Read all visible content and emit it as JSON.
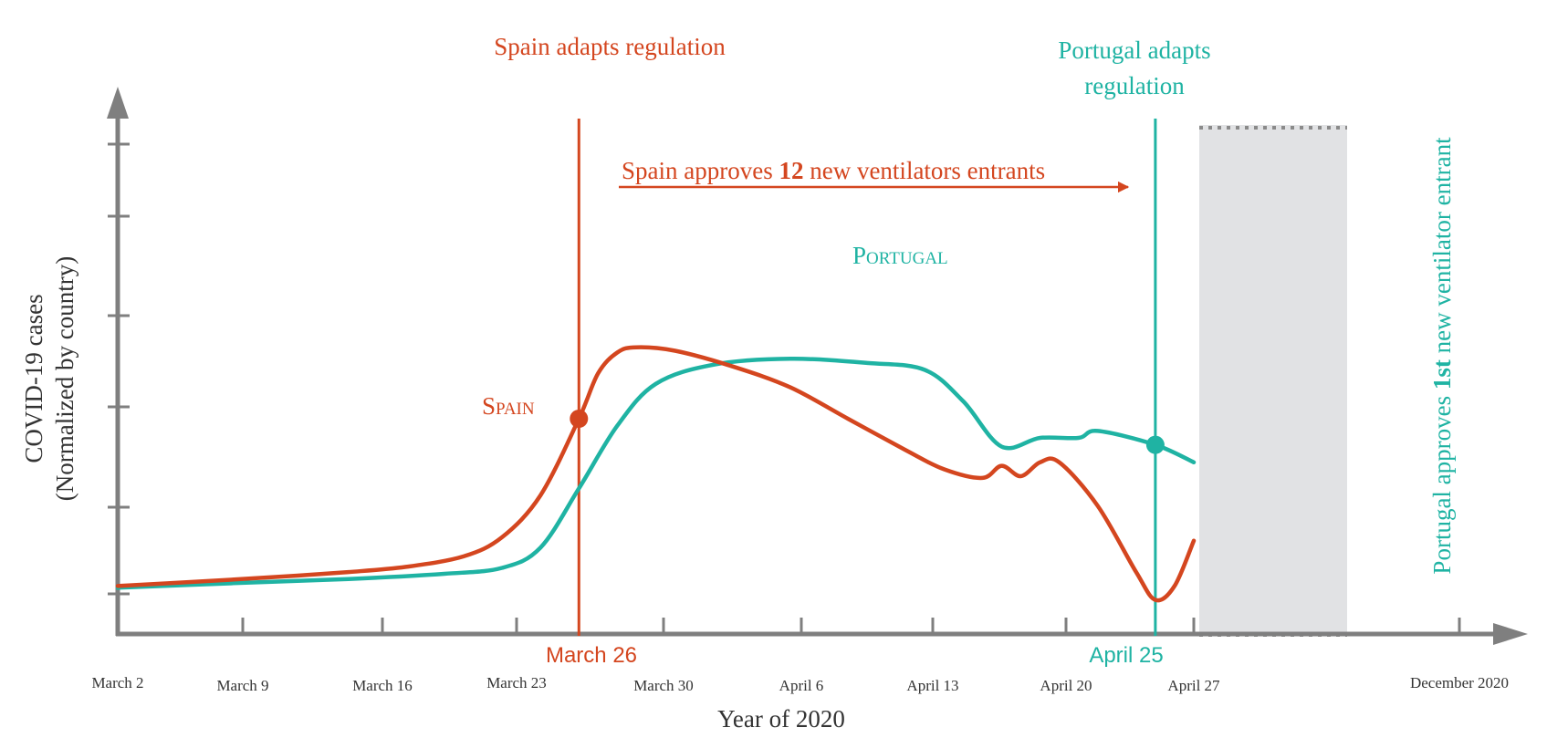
{
  "chart_data": {
    "type": "line",
    "xlabel": "Year of 2020",
    "ylabel_line1": "COVID-19 cases",
    "ylabel_line2": "(Normalized by country)",
    "x_tick_labels": [
      "March 2",
      "March 9",
      "March 16",
      "March 23",
      "March 30",
      "April 6",
      "April 13",
      "April 20",
      "April 27",
      "December 2020"
    ],
    "x_range": [
      "2020-03-02",
      "2020-04-27"
    ],
    "y_range": [
      0,
      1
    ],
    "grid": false,
    "colors": {
      "spain": "#d4461f",
      "portugal": "#1fb3a3",
      "axis": "#7f7f7f",
      "gap_region": "#e1e2e4"
    },
    "series": [
      {
        "name": "Spain",
        "color": "#d4461f",
        "points": [
          [
            "2020-03-02",
            0.02
          ],
          [
            "2020-03-06",
            0.032
          ],
          [
            "2020-03-10",
            0.045
          ],
          [
            "2020-03-14",
            0.06
          ],
          [
            "2020-03-17",
            0.075
          ],
          [
            "2020-03-20",
            0.105
          ],
          [
            "2020-03-22",
            0.16
          ],
          [
            "2020-03-24",
            0.28
          ],
          [
            "2020-03-26",
            0.5
          ],
          [
            "2020-03-27",
            0.63
          ],
          [
            "2020-03-28",
            0.69
          ],
          [
            "2020-03-29",
            0.705
          ],
          [
            "2020-03-31",
            0.695
          ],
          [
            "2020-04-03",
            0.65
          ],
          [
            "2020-04-06",
            0.59
          ],
          [
            "2020-04-09",
            0.5
          ],
          [
            "2020-04-12",
            0.41
          ],
          [
            "2020-04-14",
            0.355
          ],
          [
            "2020-04-16",
            0.33
          ],
          [
            "2020-04-17",
            0.365
          ],
          [
            "2020-04-18",
            0.335
          ],
          [
            "2020-04-19",
            0.375
          ],
          [
            "2020-04-20",
            0.375
          ],
          [
            "2020-04-22",
            0.25
          ],
          [
            "2020-04-24",
            0.06
          ],
          [
            "2020-04-25",
            -0.02
          ],
          [
            "2020-04-26",
            0.02
          ],
          [
            "2020-04-27",
            0.15
          ]
        ]
      },
      {
        "name": "Portugal",
        "color": "#1fb3a3",
        "points": [
          [
            "2020-03-02",
            0.015
          ],
          [
            "2020-03-08",
            0.028
          ],
          [
            "2020-03-14",
            0.04
          ],
          [
            "2020-03-19",
            0.055
          ],
          [
            "2020-03-22",
            0.072
          ],
          [
            "2020-03-24",
            0.13
          ],
          [
            "2020-03-26",
            0.3
          ],
          [
            "2020-03-28",
            0.48
          ],
          [
            "2020-03-30",
            0.6
          ],
          [
            "2020-04-02",
            0.655
          ],
          [
            "2020-04-06",
            0.672
          ],
          [
            "2020-04-10",
            0.66
          ],
          [
            "2020-04-13",
            0.64
          ],
          [
            "2020-04-15",
            0.55
          ],
          [
            "2020-04-17",
            0.42
          ],
          [
            "2020-04-19",
            0.445
          ],
          [
            "2020-04-21",
            0.445
          ],
          [
            "2020-04-22",
            0.465
          ],
          [
            "2020-04-25",
            0.425
          ],
          [
            "2020-04-27",
            0.375
          ]
        ]
      }
    ],
    "markers": [
      {
        "series": "Spain",
        "x": "2020-03-26",
        "y": 0.5
      },
      {
        "series": "Portugal",
        "x": "2020-04-25",
        "y": 0.425
      }
    ],
    "series_labels": {
      "spain": "Spain",
      "portugal": "Portugal"
    },
    "annotations": {
      "spain_regulation": "Spain adapts regulation",
      "portugal_regulation_line1": "Portugal adapts",
      "portugal_regulation_line2": "regulation",
      "spain_approval_pre": "Spain approves ",
      "spain_approval_bold": "12",
      "spain_approval_post": " new ventilators entrants",
      "portugal_approval_pre": "Portugal approves ",
      "portugal_approval_bold": "1st",
      "portugal_approval_post": " new ventilator entrant",
      "spain_date": "March 26",
      "portugal_date": "April 25"
    },
    "vertical_lines": [
      {
        "x": "2020-03-26",
        "label": "March 26",
        "color": "#d4461f"
      },
      {
        "x": "2020-04-25",
        "label": "April 25",
        "color": "#1fb3a3"
      }
    ],
    "gap_region": {
      "from": "2020-04-27",
      "to": "December 2020",
      "style": "shaded, dotted borders (axis break)"
    }
  }
}
